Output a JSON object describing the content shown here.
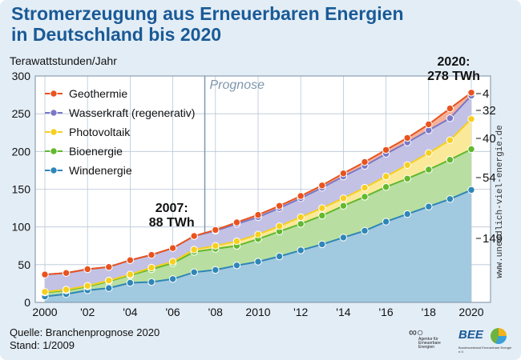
{
  "title": {
    "line1": "Stromerzeugung aus Erneuerbaren Energien",
    "line2": "in Deutschland bis 2020"
  },
  "colors": {
    "geothermie": "#e8531f",
    "wasserkraft": "#7a78c6",
    "photovoltaik": "#f7cf1e",
    "bioenergie": "#62b82e",
    "windenergie": "#2f86b7",
    "title": "#1a5a96"
  },
  "chart_data": {
    "type": "area",
    "title": "Stromerzeugung aus Erneuerbaren Energien in Deutschland bis 2020",
    "ylabel": "Terawattstunden/Jahr",
    "xlabel": "",
    "ylim": [
      0,
      300
    ],
    "yticks": [
      0,
      50,
      100,
      150,
      200,
      250,
      300
    ],
    "x": [
      2000,
      2001,
      2002,
      2003,
      2004,
      2005,
      2006,
      2007,
      2008,
      2009,
      2010,
      2011,
      2012,
      2013,
      2014,
      2015,
      2016,
      2017,
      2018,
      2019,
      2020
    ],
    "x_tick_labels": [
      {
        "x": 2000,
        "label": "2000"
      },
      {
        "x": 2002,
        "label": "'02"
      },
      {
        "x": 2004,
        "label": "'04"
      },
      {
        "x": 2006,
        "label": "'06"
      },
      {
        "x": 2008,
        "label": "'08"
      },
      {
        "x": 2010,
        "label": "2010"
      },
      {
        "x": 2012,
        "label": "'12"
      },
      {
        "x": 2014,
        "label": "'14"
      },
      {
        "x": 2016,
        "label": "'16"
      },
      {
        "x": 2018,
        "label": "'18"
      },
      {
        "x": 2020,
        "label": "2020"
      }
    ],
    "stacking": "cumulative",
    "series": [
      {
        "name": "Windenergie",
        "key": "windenergie",
        "cumulative": [
          8,
          11,
          16,
          19,
          26,
          27,
          31,
          40,
          43,
          49,
          54,
          61,
          69,
          77,
          86,
          95,
          107,
          117,
          127,
          137,
          149
        ]
      },
      {
        "name": "Bioenergie",
        "key": "bioenergie",
        "cumulative": [
          13,
          16,
          21,
          28,
          36,
          44,
          52,
          67,
          71,
          75,
          84,
          94,
          104,
          115,
          128,
          140,
          153,
          164,
          176,
          189,
          203
        ]
      },
      {
        "name": "Photovoltaik",
        "key": "photovoltaik",
        "cumulative": [
          14,
          17,
          22,
          29,
          37,
          46,
          54,
          70,
          75,
          81,
          90,
          101,
          113,
          125,
          138,
          152,
          167,
          182,
          198,
          215,
          243
        ]
      },
      {
        "name": "Wasserkraft (regenerativ)",
        "key": "wasserkraft",
        "cumulative": [
          37,
          39,
          44,
          47,
          56,
          63,
          72,
          88,
          95,
          104,
          113,
          125,
          138,
          152,
          167,
          181,
          197,
          212,
          228,
          244,
          274
        ]
      },
      {
        "name": "Geothermie",
        "key": "geothermie",
        "cumulative": [
          37,
          39,
          44,
          47,
          56,
          63,
          72,
          88,
          96,
          106,
          116,
          128,
          141,
          155,
          171,
          186,
          202,
          218,
          236,
          257,
          278
        ]
      }
    ],
    "legend": {
      "placement": "top-left",
      "order": [
        "Geothermie",
        "Wasserkraft (regenerativ)",
        "Photovoltaik",
        "Bioenergie",
        "Windenergie"
      ]
    },
    "end_values": [
      {
        "label": "4",
        "series": "Geothermie"
      },
      {
        "label": "32",
        "series": "Wasserkraft (regenerativ)"
      },
      {
        "label": "40",
        "series": "Photovoltaik"
      },
      {
        "label": "54",
        "series": "Bioenergie"
      },
      {
        "label": "149",
        "series": "Windenergie"
      }
    ],
    "prognose": {
      "x": 2007.5,
      "label": "Prognose"
    },
    "annotations": [
      {
        "year_label": "2007:",
        "value_label": "88 TWh",
        "x": 2007
      },
      {
        "year_label": "2020:",
        "value_label": "278 TWh",
        "x": 2020
      }
    ]
  },
  "source": {
    "quelle": "Quelle: Branchenprognose 2020",
    "stand": "Stand: 1/2009"
  },
  "watermark": "www.unendlich-viel-energie.de",
  "logos": {
    "aee": "Agentur für Erneuerbare Energien",
    "bee": "BEE",
    "bee_sub": "Bundesverband Erneuerbare Energie e.V."
  }
}
